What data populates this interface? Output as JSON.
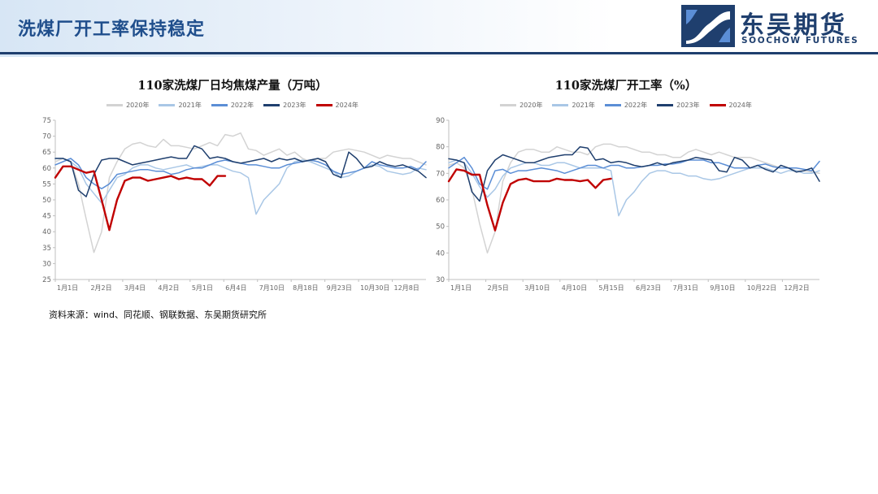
{
  "header": {
    "title": "洗煤厂开工率保持稳定",
    "logo_cn": "东吴期货",
    "logo_en": "SOOCHOW FUTURES",
    "accent_color": "#1f3f6e"
  },
  "source": "资料来源：wind、同花顺、钢联数据、东吴期货研究所",
  "chart_data": [
    {
      "type": "line",
      "title": "110家洗煤厂日均焦煤产量（万吨）",
      "xlabel": "",
      "ylabel": "",
      "ylim": [
        25,
        75
      ],
      "yticks": [
        25,
        30,
        35,
        40,
        45,
        50,
        55,
        60,
        65,
        70,
        75
      ],
      "x_tick_labels": [
        "1月1日",
        "2月2日",
        "3月4日",
        "4月2日",
        "5月1日",
        "6月4日",
        "7月10日",
        "8月18日",
        "9月23日",
        "10月30日",
        "12月8日"
      ],
      "grid": false,
      "legend": "top",
      "series": [
        {
          "name": "2020年",
          "color": "#d3d3d3",
          "values": [
            62,
            63,
            62,
            55,
            44,
            33.5,
            40,
            57,
            62,
            66,
            67.5,
            68,
            67,
            66.5,
            69,
            67,
            67,
            66.5,
            66,
            67,
            68,
            67,
            70.5,
            70,
            71,
            66,
            65.5,
            64,
            65,
            66,
            64,
            65,
            63,
            62,
            63,
            63,
            65,
            65.5,
            66,
            65.5,
            65,
            64,
            63,
            64,
            63.5,
            63,
            63,
            62,
            61
          ]
        },
        {
          "name": "2021年",
          "color": "#a9c7e6",
          "values": [
            63,
            63,
            62,
            60,
            55,
            52,
            49,
            53,
            57,
            58,
            60,
            61,
            61,
            60,
            59.5,
            60,
            60.5,
            61,
            60,
            60.5,
            61,
            61,
            60,
            59,
            58.5,
            57,
            45.5,
            50,
            52.5,
            55,
            60,
            62,
            62.5,
            62,
            61,
            60,
            59,
            57,
            57.5,
            59,
            60,
            61,
            60.5,
            59,
            58.5,
            58,
            58.5,
            60,
            59.5
          ]
        },
        {
          "name": "2022年",
          "color": "#5b8ed6",
          "values": [
            61,
            62,
            63,
            61,
            57,
            55,
            53.5,
            55,
            58,
            58.5,
            59,
            59.5,
            59.5,
            59,
            59,
            58,
            58.5,
            59.5,
            60,
            60,
            61,
            62,
            62.5,
            62,
            61.5,
            61,
            61,
            60.5,
            60,
            60,
            61,
            61.5,
            62,
            62.5,
            62,
            61,
            59,
            58,
            58.5,
            59,
            60,
            62,
            61,
            60.5,
            60,
            60,
            60.5,
            59.5,
            62
          ]
        },
        {
          "name": "2023年",
          "color": "#1f3f6e",
          "values": [
            63,
            63,
            62,
            53,
            51,
            58,
            62.5,
            63,
            63,
            62,
            61,
            61.5,
            62,
            62.5,
            63,
            63.5,
            63,
            63,
            67,
            66,
            63,
            63.5,
            63,
            62,
            61.5,
            62,
            62.5,
            63,
            62,
            63,
            62.5,
            63,
            62,
            62.5,
            63,
            62,
            58,
            57,
            65,
            63,
            60,
            60.5,
            62,
            61,
            60.5,
            61,
            60,
            59,
            57
          ]
        },
        {
          "name": "2024年",
          "color": "#c00000",
          "values": [
            57,
            60.5,
            60.5,
            59.5,
            58.5,
            59,
            50,
            40.5,
            50,
            56,
            57,
            57,
            56,
            56.5,
            57,
            57.5,
            56.5,
            57,
            56.5,
            56.5,
            54.5,
            57.5,
            57.5,
            null,
            null,
            null,
            null,
            null,
            null,
            null,
            null,
            null,
            null,
            null,
            null,
            null,
            null,
            null,
            null,
            null,
            null,
            null,
            null,
            null,
            null,
            null,
            null,
            null,
            null
          ]
        }
      ]
    },
    {
      "type": "line",
      "title": "110家洗煤厂开工率（%）",
      "xlabel": "",
      "ylabel": "",
      "ylim": [
        30,
        90
      ],
      "yticks": [
        30,
        40,
        50,
        60,
        70,
        80,
        90
      ],
      "x_tick_labels": [
        "1月1日",
        "2月5日",
        "3月10日",
        "4月10日",
        "5月15日",
        "6月23日",
        "7月31日",
        "9月10日",
        "10月22日",
        "12月2日"
      ],
      "grid": false,
      "legend": "top",
      "series": [
        {
          "name": "2020年",
          "color": "#d3d3d3",
          "values": [
            73,
            74,
            72,
            64,
            51,
            40,
            48,
            67,
            74,
            78,
            79,
            79,
            78,
            78,
            80,
            79,
            78,
            78,
            77,
            80,
            81,
            81,
            80,
            80,
            79,
            78,
            78,
            77,
            77,
            76,
            76,
            78,
            79,
            78,
            77,
            78,
            77,
            76,
            76,
            76,
            75,
            74,
            73,
            72,
            72,
            71,
            71,
            70.5,
            70
          ]
        },
        {
          "name": "2021年",
          "color": "#a9c7e6",
          "values": [
            74,
            75,
            74,
            70,
            65,
            61,
            64,
            69,
            72,
            73,
            74,
            74,
            73,
            73,
            74,
            74,
            73,
            72,
            72,
            72,
            72,
            71,
            54,
            60,
            63,
            67,
            70,
            71,
            71,
            70,
            70,
            69,
            69,
            68,
            67.5,
            68,
            69,
            70,
            71,
            72,
            72,
            72,
            71,
            70,
            71,
            71,
            70,
            70,
            71
          ]
        },
        {
          "name": "2022年",
          "color": "#5b8ed6",
          "values": [
            72,
            74,
            76,
            72,
            66,
            64,
            71,
            71.5,
            70,
            71,
            71,
            71.5,
            72,
            71.5,
            71,
            70,
            71,
            72,
            73,
            73,
            72,
            73,
            73,
            72,
            72,
            72.5,
            73,
            73,
            73.5,
            73.5,
            74,
            75,
            75,
            75,
            74,
            74,
            73,
            72,
            72,
            72,
            73,
            73.5,
            72.5,
            72,
            72,
            72,
            71.5,
            71,
            74.5
          ]
        },
        {
          "name": "2023年",
          "color": "#1f3f6e",
          "values": [
            75.5,
            75,
            74,
            63,
            59.5,
            71,
            75,
            77,
            76,
            75,
            74,
            74,
            75,
            76,
            76.5,
            77,
            77,
            80,
            79.5,
            75,
            75.5,
            74,
            74.5,
            74,
            73,
            72.5,
            73,
            74,
            73,
            74,
            74.5,
            75,
            76,
            75.5,
            75,
            71,
            70.5,
            76,
            75,
            72,
            73,
            71.5,
            70.5,
            73,
            72,
            70.5,
            71,
            72,
            67
          ]
        },
        {
          "name": "2024年",
          "color": "#c00000",
          "values": [
            67,
            71.5,
            71,
            69.5,
            69.5,
            58,
            48.5,
            59,
            66,
            67.5,
            68,
            67,
            67,
            67,
            68,
            67.5,
            67.5,
            67,
            67.5,
            64.5,
            67.5,
            68,
            null,
            null,
            null,
            null,
            null,
            null,
            null,
            null,
            null,
            null,
            null,
            null,
            null,
            null,
            null,
            null,
            null,
            null,
            null,
            null,
            null,
            null,
            null,
            null,
            null,
            null,
            null
          ]
        }
      ]
    }
  ]
}
